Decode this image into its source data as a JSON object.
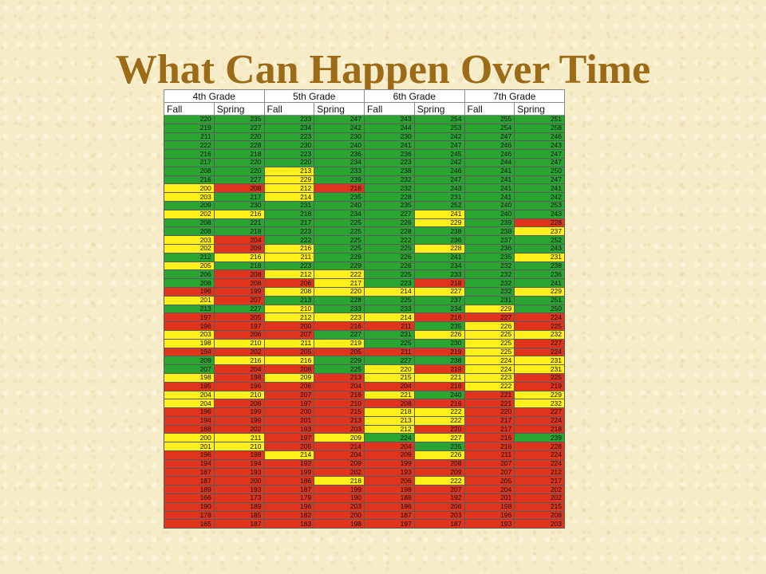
{
  "title": "What Can Happen Over Time",
  "table": {
    "grades": [
      "4th Grade",
      "5th Grade",
      "6th Grade",
      "7th Grade"
    ],
    "terms": [
      "Fall",
      "Spring",
      "Fall",
      "Spring",
      "Fall",
      "Spring",
      "Fall",
      "Spring"
    ],
    "colors": {
      "g": "#2aa532",
      "y": "#ffef1a",
      "r": "#e0341c"
    },
    "rows": [
      {
        "values": [
          "220",
          "235",
          "233",
          "247",
          "243",
          "254",
          "255",
          "251"
        ],
        "colors": [
          "g",
          "g",
          "g",
          "g",
          "g",
          "g",
          "g",
          "g"
        ]
      },
      {
        "values": [
          "219",
          "227",
          "234",
          "242",
          "244",
          "253",
          "254",
          "258"
        ],
        "colors": [
          "g",
          "g",
          "g",
          "g",
          "g",
          "g",
          "g",
          "g"
        ]
      },
      {
        "values": [
          "211",
          "220",
          "223",
          "230",
          "230",
          "242",
          "247",
          "246"
        ],
        "colors": [
          "g",
          "g",
          "g",
          "g",
          "g",
          "g",
          "g",
          "g"
        ]
      },
      {
        "values": [
          "222",
          "228",
          "230",
          "240",
          "241",
          "247",
          "246",
          "243"
        ],
        "colors": [
          "g",
          "g",
          "g",
          "g",
          "g",
          "g",
          "g",
          "g"
        ]
      },
      {
        "values": [
          "216",
          "218",
          "223",
          "236",
          "236",
          "245",
          "246",
          "247"
        ],
        "colors": [
          "g",
          "g",
          "g",
          "g",
          "g",
          "g",
          "g",
          "g"
        ]
      },
      {
        "values": [
          "217",
          "220",
          "220",
          "234",
          "223",
          "242",
          "244",
          "247"
        ],
        "colors": [
          "g",
          "g",
          "g",
          "g",
          "g",
          "g",
          "g",
          "g"
        ]
      },
      {
        "values": [
          "208",
          "220",
          "213",
          "233",
          "238",
          "246",
          "241",
          "250"
        ],
        "colors": [
          "g",
          "g",
          "y",
          "g",
          "g",
          "g",
          "g",
          "g"
        ]
      },
      {
        "values": [
          "216",
          "227",
          "229",
          "239",
          "232",
          "247",
          "241",
          "247"
        ],
        "colors": [
          "g",
          "g",
          "y",
          "g",
          "g",
          "g",
          "g",
          "g"
        ]
      },
      {
        "values": [
          "200",
          "208",
          "212",
          "216",
          "232",
          "243",
          "241",
          "241"
        ],
        "colors": [
          "y",
          "r",
          "y",
          "r",
          "g",
          "g",
          "g",
          "g"
        ]
      },
      {
        "values": [
          "203",
          "217",
          "214",
          "235",
          "228",
          "231",
          "241",
          "242"
        ],
        "colors": [
          "y",
          "g",
          "y",
          "g",
          "g",
          "g",
          "g",
          "g"
        ]
      },
      {
        "values": [
          "209",
          "230",
          "231",
          "240",
          "235",
          "252",
          "240",
          "253"
        ],
        "colors": [
          "g",
          "g",
          "g",
          "g",
          "g",
          "g",
          "g",
          "g"
        ]
      },
      {
        "values": [
          "202",
          "216",
          "218",
          "234",
          "227",
          "241",
          "240",
          "243"
        ],
        "colors": [
          "y",
          "y",
          "g",
          "g",
          "g",
          "y",
          "g",
          "g"
        ]
      },
      {
        "values": [
          "208",
          "221",
          "217",
          "225",
          "226",
          "229",
          "239",
          "228"
        ],
        "colors": [
          "g",
          "g",
          "g",
          "g",
          "g",
          "y",
          "g",
          "r"
        ]
      },
      {
        "values": [
          "208",
          "218",
          "223",
          "225",
          "228",
          "238",
          "238",
          "237"
        ],
        "colors": [
          "g",
          "g",
          "g",
          "g",
          "g",
          "g",
          "g",
          "y"
        ]
      },
      {
        "values": [
          "203",
          "204",
          "222",
          "225",
          "222",
          "236",
          "237",
          "252"
        ],
        "colors": [
          "y",
          "r",
          "g",
          "g",
          "g",
          "g",
          "g",
          "g"
        ]
      },
      {
        "values": [
          "202",
          "209",
          "216",
          "225",
          "225",
          "228",
          "236",
          "243"
        ],
        "colors": [
          "y",
          "r",
          "y",
          "g",
          "g",
          "y",
          "g",
          "g"
        ]
      },
      {
        "values": [
          "212",
          "216",
          "211",
          "229",
          "226",
          "241",
          "235",
          "231"
        ],
        "colors": [
          "g",
          "y",
          "y",
          "g",
          "g",
          "g",
          "g",
          "y"
        ]
      },
      {
        "values": [
          "205",
          "218",
          "223",
          "229",
          "226",
          "234",
          "232",
          "238"
        ],
        "colors": [
          "y",
          "g",
          "g",
          "g",
          "g",
          "g",
          "g",
          "g"
        ]
      },
      {
        "values": [
          "206",
          "208",
          "212",
          "222",
          "225",
          "233",
          "232",
          "236"
        ],
        "colors": [
          "g",
          "r",
          "y",
          "y",
          "g",
          "g",
          "g",
          "g"
        ]
      },
      {
        "values": [
          "208",
          "208",
          "206",
          "217",
          "223",
          "218",
          "232",
          "241"
        ],
        "colors": [
          "g",
          "r",
          "r",
          "y",
          "g",
          "r",
          "g",
          "g"
        ]
      },
      {
        "values": [
          "196",
          "199",
          "208",
          "220",
          "214",
          "227",
          "232",
          "229"
        ],
        "colors": [
          "r",
          "r",
          "y",
          "y",
          "y",
          "y",
          "g",
          "y"
        ]
      },
      {
        "values": [
          "201",
          "207",
          "213",
          "228",
          "225",
          "237",
          "231",
          "251"
        ],
        "colors": [
          "y",
          "r",
          "g",
          "g",
          "g",
          "g",
          "g",
          "g"
        ]
      },
      {
        "values": [
          "213",
          "227",
          "210",
          "233",
          "233",
          "234",
          "229",
          "250"
        ],
        "colors": [
          "g",
          "g",
          "y",
          "g",
          "g",
          "g",
          "y",
          "g"
        ]
      },
      {
        "values": [
          "197",
          "205",
          "212",
          "223",
          "214",
          "216",
          "227",
          "224"
        ],
        "colors": [
          "r",
          "r",
          "y",
          "y",
          "y",
          "r",
          "r",
          "r"
        ]
      },
      {
        "values": [
          "196",
          "197",
          "200",
          "216",
          "211",
          "235",
          "226",
          "225"
        ],
        "colors": [
          "r",
          "r",
          "r",
          "r",
          "r",
          "g",
          "y",
          "r"
        ]
      },
      {
        "values": [
          "203",
          "206",
          "207",
          "227",
          "231",
          "226",
          "225",
          "232"
        ],
        "colors": [
          "y",
          "r",
          "r",
          "g",
          "g",
          "y",
          "y",
          "y"
        ]
      },
      {
        "values": [
          "198",
          "210",
          "211",
          "219",
          "225",
          "230",
          "225",
          "227"
        ],
        "colors": [
          "y",
          "y",
          "y",
          "y",
          "g",
          "g",
          "y",
          "r"
        ]
      },
      {
        "values": [
          "194",
          "202",
          "205",
          "205",
          "211",
          "219",
          "225",
          "224"
        ],
        "colors": [
          "r",
          "r",
          "r",
          "r",
          "r",
          "r",
          "y",
          "r"
        ]
      },
      {
        "values": [
          "209",
          "216",
          "216",
          "229",
          "227",
          "238",
          "224",
          "231"
        ],
        "colors": [
          "g",
          "y",
          "y",
          "g",
          "g",
          "g",
          "y",
          "y"
        ]
      },
      {
        "values": [
          "207",
          "204",
          "208",
          "225",
          "220",
          "219",
          "224",
          "231"
        ],
        "colors": [
          "g",
          "r",
          "r",
          "g",
          "y",
          "r",
          "y",
          "y"
        ]
      },
      {
        "values": [
          "198",
          "198",
          "209",
          "213",
          "215",
          "221",
          "223",
          "225"
        ],
        "colors": [
          "y",
          "r",
          "y",
          "r",
          "y",
          "y",
          "y",
          "r"
        ]
      },
      {
        "values": [
          "195",
          "196",
          "206",
          "204",
          "204",
          "216",
          "222",
          "219"
        ],
        "colors": [
          "r",
          "r",
          "r",
          "r",
          "r",
          "r",
          "y",
          "r"
        ]
      },
      {
        "values": [
          "204",
          "210",
          "207",
          "216",
          "221",
          "240",
          "221",
          "229"
        ],
        "colors": [
          "y",
          "y",
          "r",
          "r",
          "y",
          "g",
          "r",
          "y"
        ]
      },
      {
        "values": [
          "204",
          "206",
          "197",
          "210",
          "208",
          "216",
          "221",
          "232"
        ],
        "colors": [
          "y",
          "r",
          "r",
          "r",
          "r",
          "r",
          "r",
          "y"
        ]
      },
      {
        "values": [
          "196",
          "199",
          "200",
          "215",
          "218",
          "222",
          "220",
          "227"
        ],
        "colors": [
          "r",
          "r",
          "r",
          "r",
          "y",
          "y",
          "r",
          "r"
        ]
      },
      {
        "values": [
          "194",
          "199",
          "201",
          "213",
          "213",
          "222",
          "217",
          "224"
        ],
        "colors": [
          "r",
          "r",
          "r",
          "r",
          "y",
          "y",
          "r",
          "r"
        ]
      },
      {
        "values": [
          "188",
          "202",
          "193",
          "203",
          "212",
          "220",
          "217",
          "218"
        ],
        "colors": [
          "r",
          "r",
          "r",
          "r",
          "y",
          "r",
          "r",
          "r"
        ]
      },
      {
        "values": [
          "200",
          "211",
          "197",
          "209",
          "224",
          "227",
          "216",
          "239"
        ],
        "colors": [
          "y",
          "y",
          "r",
          "y",
          "g",
          "y",
          "r",
          "g"
        ]
      },
      {
        "values": [
          "201",
          "210",
          "205",
          "214",
          "204",
          "235",
          "216",
          "228"
        ],
        "colors": [
          "y",
          "y",
          "r",
          "r",
          "r",
          "g",
          "r",
          "r"
        ]
      },
      {
        "values": [
          "196",
          "198",
          "214",
          "204",
          "209",
          "226",
          "211",
          "224"
        ],
        "colors": [
          "r",
          "r",
          "y",
          "r",
          "r",
          "y",
          "r",
          "r"
        ]
      },
      {
        "values": [
          "194",
          "194",
          "192",
          "209",
          "199",
          "208",
          "207",
          "224"
        ],
        "colors": [
          "r",
          "r",
          "r",
          "r",
          "r",
          "r",
          "r",
          "r"
        ]
      },
      {
        "values": [
          "187",
          "193",
          "199",
          "202",
          "193",
          "209",
          "207",
          "212"
        ],
        "colors": [
          "r",
          "r",
          "r",
          "r",
          "r",
          "r",
          "r",
          "r"
        ]
      },
      {
        "values": [
          "187",
          "200",
          "186",
          "218",
          "206",
          "222",
          "205",
          "217"
        ],
        "colors": [
          "r",
          "r",
          "r",
          "y",
          "r",
          "y",
          "r",
          "r"
        ]
      },
      {
        "values": [
          "189",
          "193",
          "187",
          "199",
          "198",
          "207",
          "204",
          "202"
        ],
        "colors": [
          "r",
          "r",
          "r",
          "r",
          "r",
          "r",
          "r",
          "r"
        ]
      },
      {
        "values": [
          "166",
          "173",
          "179",
          "190",
          "188",
          "192",
          "201",
          "202"
        ],
        "colors": [
          "r",
          "r",
          "r",
          "r",
          "r",
          "r",
          "r",
          "r"
        ]
      },
      {
        "values": [
          "190",
          "189",
          "196",
          "203",
          "196",
          "206",
          "198",
          "215"
        ],
        "colors": [
          "r",
          "r",
          "r",
          "r",
          "r",
          "r",
          "r",
          "r"
        ]
      },
      {
        "values": [
          "178",
          "185",
          "182",
          "200",
          "187",
          "203",
          "196",
          "208"
        ],
        "colors": [
          "r",
          "r",
          "r",
          "r",
          "r",
          "r",
          "r",
          "r"
        ]
      },
      {
        "values": [
          "165",
          "187",
          "183",
          "198",
          "197",
          "187",
          "193",
          "203"
        ],
        "colors": [
          "r",
          "r",
          "r",
          "r",
          "r",
          "r",
          "r",
          "r"
        ]
      }
    ]
  }
}
